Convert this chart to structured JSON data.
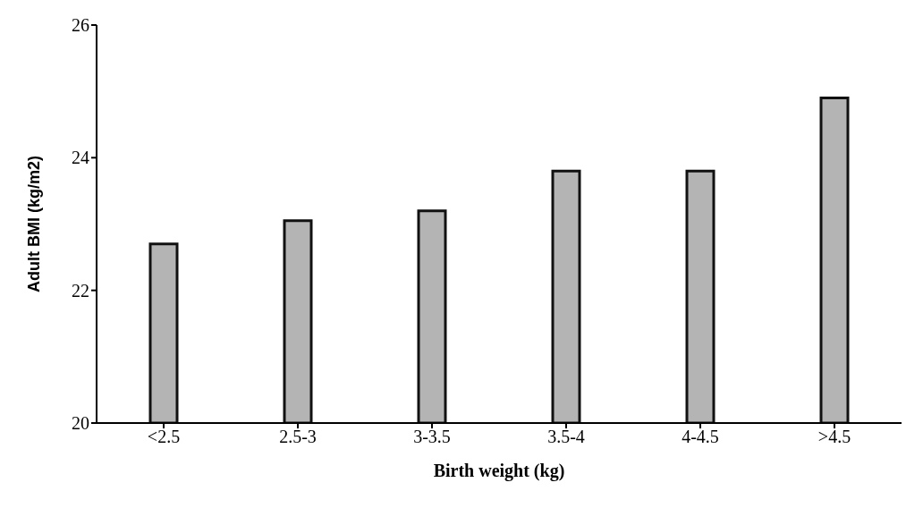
{
  "chart_data": {
    "type": "bar",
    "xlabel": "Birth weight (kg)",
    "ylabel": "Adult BMI (kg/m2)",
    "categories": [
      "<2.5",
      "2.5-3",
      "3-3.5",
      "3.5-4",
      "4-4.5",
      ">4.5"
    ],
    "values": [
      22.7,
      23.05,
      23.2,
      23.8,
      23.8,
      24.9
    ],
    "color": "#b4b4b4",
    "ylim": [
      20,
      26
    ],
    "yticks": [
      20,
      22,
      24,
      26
    ],
    "grid": false,
    "legend": false
  }
}
